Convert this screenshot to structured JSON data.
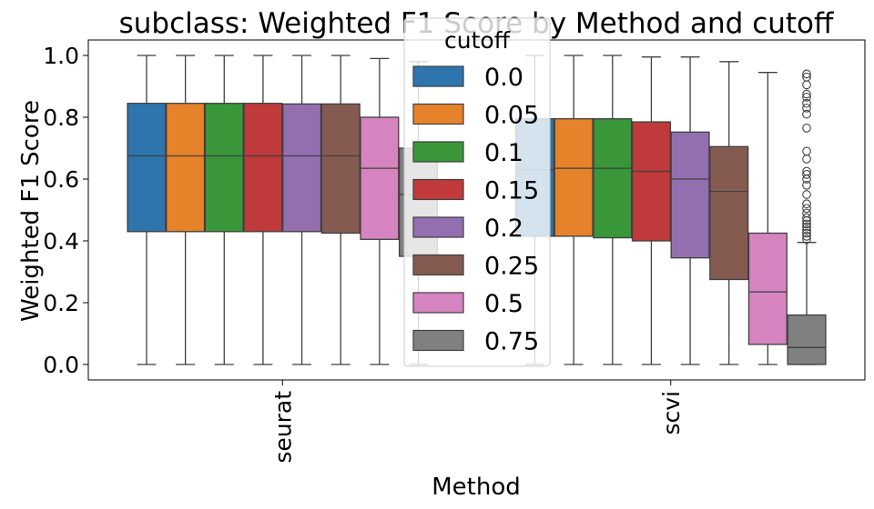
{
  "chart_data": {
    "type": "box",
    "title": "subclass: Weighted F1 Score by Method and cutoff",
    "xlabel": "Method",
    "ylabel": "Weighted F1 Score",
    "ylim": [
      -0.05,
      1.05
    ],
    "yticks": [
      0.0,
      0.2,
      0.4,
      0.6,
      0.8,
      1.0
    ],
    "ytick_labels": [
      "0.0",
      "0.2",
      "0.4",
      "0.6",
      "0.8",
      "1.0"
    ],
    "categories": [
      "seurat",
      "scvi"
    ],
    "legend": {
      "title": "cutoff",
      "placement": "upper-center",
      "entries": [
        {
          "label": "0.0",
          "color": "#2e75ad"
        },
        {
          "label": "0.05",
          "color": "#e6822a"
        },
        {
          "label": "0.1",
          "color": "#399639"
        },
        {
          "label": "0.15",
          "color": "#c03a3b"
        },
        {
          "label": "0.2",
          "color": "#936fb0"
        },
        {
          "label": "0.25",
          "color": "#855b51"
        },
        {
          "label": "0.5",
          "color": "#d684c0"
        },
        {
          "label": "0.75",
          "color": "#808080"
        }
      ]
    },
    "series": [
      {
        "name": "0.0",
        "boxes": [
          {
            "category": "seurat",
            "whislo": 0.0,
            "q1": 0.43,
            "med": 0.675,
            "q3": 0.845,
            "whishi": 1.0,
            "fliers": []
          },
          {
            "category": "scvi",
            "whislo": 0.0,
            "q1": 0.415,
            "med": 0.63,
            "q3": 0.795,
            "whishi": 1.0,
            "fliers": []
          }
        ]
      },
      {
        "name": "0.05",
        "boxes": [
          {
            "category": "seurat",
            "whislo": 0.0,
            "q1": 0.43,
            "med": 0.675,
            "q3": 0.845,
            "whishi": 1.0,
            "fliers": []
          },
          {
            "category": "scvi",
            "whislo": 0.0,
            "q1": 0.415,
            "med": 0.635,
            "q3": 0.795,
            "whishi": 1.0,
            "fliers": []
          }
        ]
      },
      {
        "name": "0.1",
        "boxes": [
          {
            "category": "seurat",
            "whislo": 0.0,
            "q1": 0.43,
            "med": 0.675,
            "q3": 0.845,
            "whishi": 1.0,
            "fliers": []
          },
          {
            "category": "scvi",
            "whislo": 0.0,
            "q1": 0.41,
            "med": 0.635,
            "q3": 0.795,
            "whishi": 1.0,
            "fliers": []
          }
        ]
      },
      {
        "name": "0.15",
        "boxes": [
          {
            "category": "seurat",
            "whislo": 0.0,
            "q1": 0.43,
            "med": 0.675,
            "q3": 0.845,
            "whishi": 1.0,
            "fliers": []
          },
          {
            "category": "scvi",
            "whislo": 0.0,
            "q1": 0.4,
            "med": 0.625,
            "q3": 0.785,
            "whishi": 0.995,
            "fliers": []
          }
        ]
      },
      {
        "name": "0.2",
        "boxes": [
          {
            "category": "seurat",
            "whislo": 0.0,
            "q1": 0.43,
            "med": 0.675,
            "q3": 0.843,
            "whishi": 1.0,
            "fliers": []
          },
          {
            "category": "scvi",
            "whislo": 0.0,
            "q1": 0.345,
            "med": 0.6,
            "q3": 0.752,
            "whishi": 0.995,
            "fliers": []
          }
        ]
      },
      {
        "name": "0.25",
        "boxes": [
          {
            "category": "seurat",
            "whislo": 0.0,
            "q1": 0.425,
            "med": 0.675,
            "q3": 0.843,
            "whishi": 1.0,
            "fliers": []
          },
          {
            "category": "scvi",
            "whislo": 0.0,
            "q1": 0.275,
            "med": 0.56,
            "q3": 0.705,
            "whishi": 0.98,
            "fliers": []
          }
        ]
      },
      {
        "name": "0.5",
        "boxes": [
          {
            "category": "seurat",
            "whislo": 0.0,
            "q1": 0.405,
            "med": 0.635,
            "q3": 0.8,
            "whishi": 0.99,
            "fliers": []
          },
          {
            "category": "scvi",
            "whislo": 0.0,
            "q1": 0.065,
            "med": 0.235,
            "q3": 0.425,
            "whishi": 0.945,
            "fliers": []
          }
        ]
      },
      {
        "name": "0.75",
        "boxes": [
          {
            "category": "seurat",
            "whislo": 0.0,
            "q1": 0.35,
            "med": 0.55,
            "q3": 0.7,
            "whishi": 0.98,
            "fliers": []
          },
          {
            "category": "scvi",
            "whislo": 0.0,
            "q1": 0.0,
            "med": 0.055,
            "q3": 0.16,
            "whishi": 0.395,
            "fliers": [
              0.405,
              0.415,
              0.425,
              0.435,
              0.445,
              0.455,
              0.465,
              0.475,
              0.49,
              0.505,
              0.52,
              0.55,
              0.58,
              0.6,
              0.615,
              0.625,
              0.665,
              0.69,
              0.765,
              0.81,
              0.83,
              0.845,
              0.865,
              0.875,
              0.905,
              0.93,
              0.94
            ]
          }
        ]
      }
    ]
  }
}
